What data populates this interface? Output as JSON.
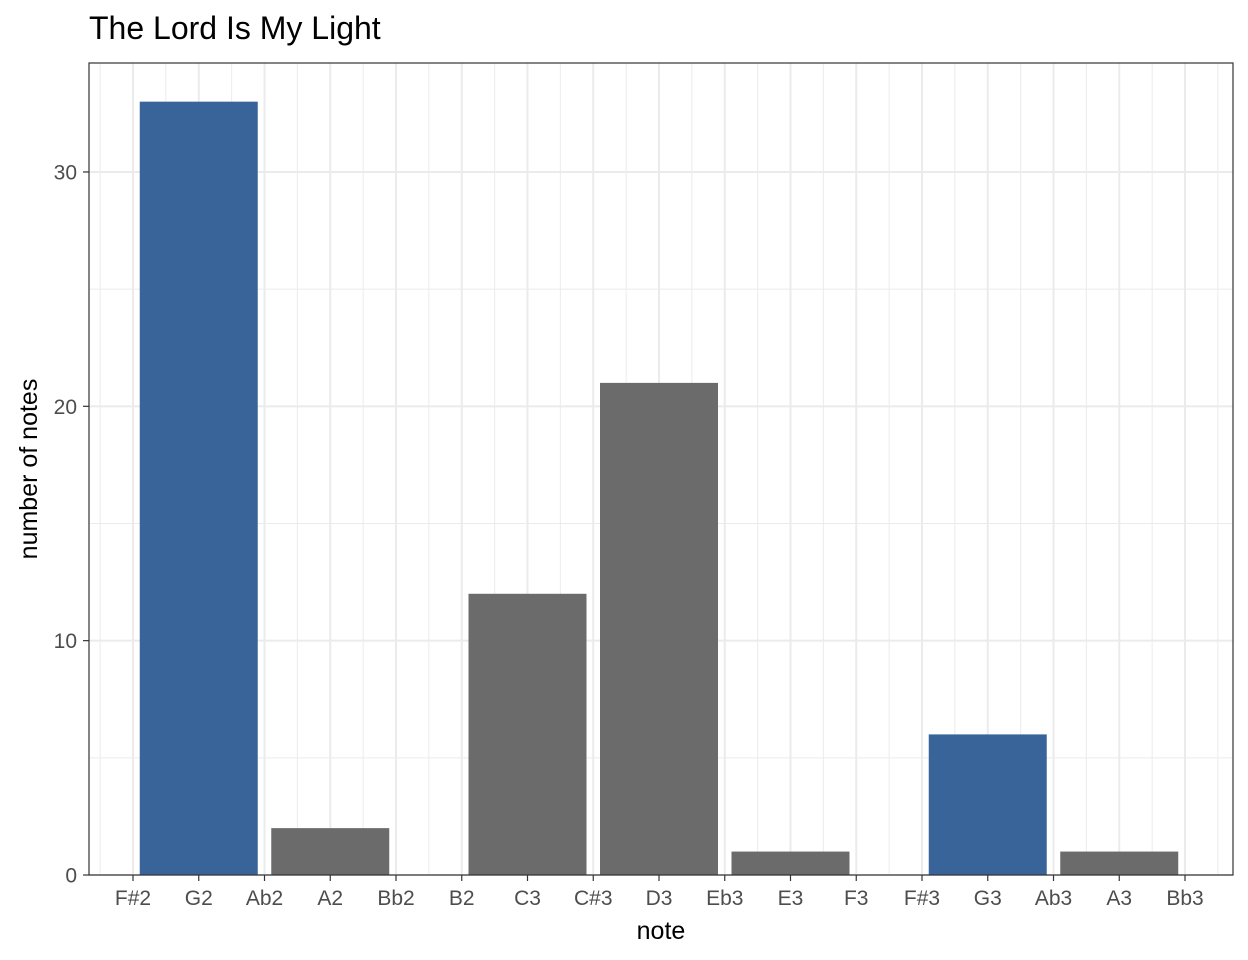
{
  "chart_data": {
    "type": "bar",
    "title": "The Lord Is My Light",
    "xlabel": "note",
    "ylabel": "number of notes",
    "categories": [
      "F#2",
      "G2",
      "Ab2",
      "A2",
      "Bb2",
      "B2",
      "C3",
      "C#3",
      "D3",
      "Eb3",
      "E3",
      "F3",
      "F#3",
      "G3",
      "Ab3",
      "A3",
      "Bb3"
    ],
    "bars": [
      {
        "from": "G2",
        "to": "Ab2",
        "value": 33,
        "color": "#386499"
      },
      {
        "from": "A2",
        "to": "Bb2",
        "value": 2,
        "color": "#6b6b6b"
      },
      {
        "from": "C3",
        "to": "C#3",
        "value": 12,
        "color": "#6b6b6b"
      },
      {
        "from": "D3",
        "to": "Eb3",
        "value": 21,
        "color": "#6b6b6b"
      },
      {
        "from": "E3",
        "to": "F3",
        "value": 1,
        "color": "#6b6b6b"
      },
      {
        "from": "G3",
        "to": "Ab3",
        "value": 6,
        "color": "#386499"
      },
      {
        "from": "A3",
        "to": "Bb3",
        "value": 1,
        "color": "#6b6b6b"
      }
    ],
    "yticks": [
      0,
      10,
      20,
      30
    ],
    "ylim": [
      0,
      34.65
    ],
    "grid": true,
    "colors": {
      "highlight": "#386499",
      "default": "#6b6b6b",
      "grid": "#ebebeb",
      "panel_border": "#333333"
    }
  }
}
